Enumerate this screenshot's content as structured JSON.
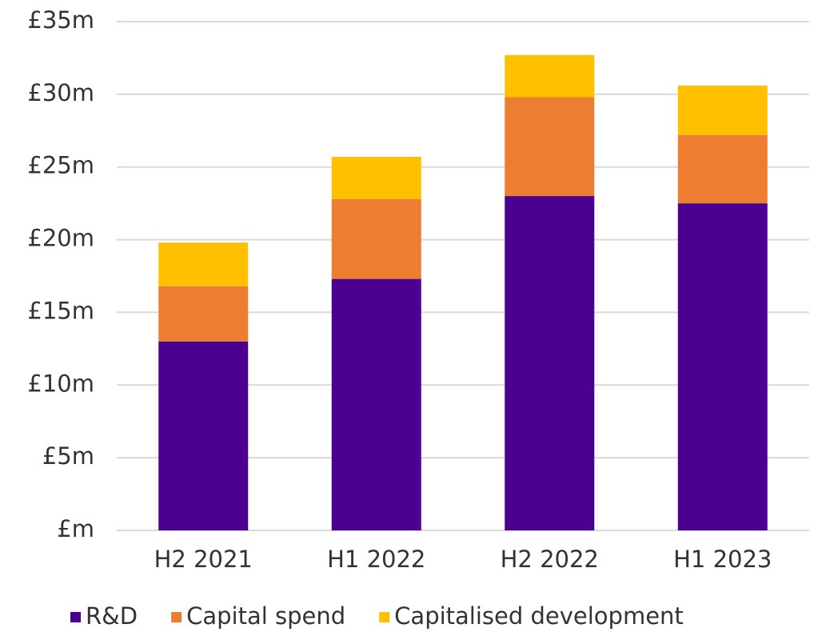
{
  "chart_data": {
    "type": "bar",
    "stacked": true,
    "categories": [
      "H2 2021",
      "H1 2022",
      "H2 2022",
      "H1 2023"
    ],
    "series": [
      {
        "name": "R&D",
        "color": "#4b0091",
        "values": [
          13.0,
          17.3,
          23.0,
          22.5
        ]
      },
      {
        "name": "Capital spend",
        "color": "#ed7d31",
        "values": [
          3.8,
          5.5,
          6.8,
          4.7
        ]
      },
      {
        "name": "Capitalised development",
        "color": "#ffc000",
        "values": [
          3.0,
          2.9,
          2.9,
          3.4
        ]
      }
    ],
    "ylim": [
      0,
      35
    ],
    "yticks": [
      {
        "value": 0,
        "label": "£m"
      },
      {
        "value": 5,
        "label": "£5m"
      },
      {
        "value": 10,
        "label": "£10m"
      },
      {
        "value": 15,
        "label": "£15m"
      },
      {
        "value": 20,
        "label": "£20m"
      },
      {
        "value": 25,
        "label": "£25m"
      },
      {
        "value": 30,
        "label": "£30m"
      },
      {
        "value": 35,
        "label": "£35m"
      }
    ],
    "grid": true,
    "legend": "bottom"
  }
}
